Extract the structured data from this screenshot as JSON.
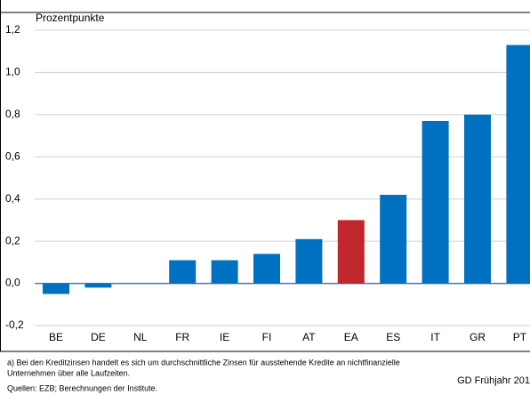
{
  "chart_data": {
    "type": "bar",
    "y_axis_label": "Prozentpunkte",
    "categories": [
      "BE",
      "DE",
      "NL",
      "FR",
      "IE",
      "FI",
      "AT",
      "EA",
      "ES",
      "IT",
      "GR",
      "PT"
    ],
    "values": [
      -0.05,
      -0.02,
      0,
      0.11,
      0.11,
      0.14,
      0.21,
      0.3,
      0.42,
      0.77,
      0.8,
      1.13
    ],
    "colors": [
      "#0070c0",
      "#0070c0",
      "#0070c0",
      "#0070c0",
      "#0070c0",
      "#0070c0",
      "#0070c0",
      "#c0272d",
      "#0070c0",
      "#0070c0",
      "#0070c0",
      "#0070c0"
    ],
    "ylim": [
      -0.2,
      1.2
    ],
    "yticks": [
      {
        "value": -0.2,
        "label": "-0,2"
      },
      {
        "value": 0,
        "label": "0,0"
      },
      {
        "value": 0.2,
        "label": "0,2"
      },
      {
        "value": 0.4,
        "label": "0,4"
      },
      {
        "value": 0.6,
        "label": "0,6"
      },
      {
        "value": 0.8,
        "label": "0,8"
      },
      {
        "value": 1.0,
        "label": "1,0"
      },
      {
        "value": 1.2,
        "label": "1,2"
      }
    ],
    "grid": true,
    "footnote_lines": [
      "a) Bei den Kreditzinsen handelt es sich um durchschnittliche Zinsen für ausstehende Kredite an nichtfinanzielle",
      "Unternehmen über alle Laufzeiten."
    ],
    "source": "Quellen: EZB; Berechnungen der Institute.",
    "credit": "GD Frühjahr 201"
  }
}
